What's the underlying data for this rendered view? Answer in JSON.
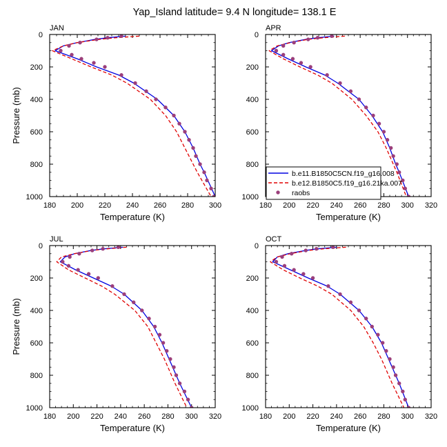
{
  "title": "Yap_Island  latitude= 9.4 N longitude= 138.1 E",
  "legend": {
    "entries": [
      "b.e11.B1850C5CN.f19_g16.008",
      "b.e12.B1850C5.f19_g16.21ka.007",
      "raobs"
    ]
  },
  "colors": {
    "model1": "#0000e0",
    "model2": "#e00000",
    "obs": "#9b3f7b"
  },
  "chart_data": [
    {
      "type": "line",
      "panel": "JAN",
      "xlabel": "Temperature (K)",
      "ylabel": "Pressure (mb)",
      "xlim": [
        180,
        300
      ],
      "xticks": [
        "180",
        "200",
        "220",
        "240",
        "260",
        "280",
        "300"
      ],
      "ylim": [
        0,
        1000
      ],
      "yreversed": true,
      "yticks": [
        "0",
        "200",
        "400",
        "600",
        "800",
        "1000"
      ],
      "series": [
        {
          "name": "b.e11.B1850C5CN.f19_g16.008",
          "style": "solid",
          "p": [
            10,
            20,
            30,
            50,
            70,
            100,
            150,
            200,
            250,
            300,
            400,
            500,
            600,
            700,
            800,
            850,
            925,
            1000
          ],
          "t": [
            235,
            222,
            213,
            200,
            190,
            184,
            200,
            214,
            230,
            241,
            258,
            270,
            278,
            284,
            289,
            292,
            296,
            300
          ]
        },
        {
          "name": "b.e12.B1850C5.f19_g16.21ka.007",
          "style": "dashed",
          "p": [
            10,
            20,
            30,
            50,
            70,
            100,
            150,
            200,
            250,
            300,
            400,
            500,
            600,
            700,
            800,
            850,
            925,
            1000
          ],
          "t": [
            245,
            228,
            216,
            200,
            190,
            182,
            196,
            210,
            225,
            236,
            253,
            264,
            272,
            278,
            284,
            287,
            292,
            297
          ]
        },
        {
          "name": "raobs",
          "style": "markers",
          "p": [
            10,
            20,
            30,
            50,
            70,
            100,
            125,
            150,
            175,
            200,
            250,
            300,
            350,
            400,
            450,
            500,
            550,
            600,
            650,
            700,
            750,
            800,
            850,
            900,
            950,
            1000
          ],
          "t": [
            232,
            222,
            214,
            202,
            194,
            188,
            196,
            203,
            212,
            220,
            232,
            242,
            250,
            257,
            264,
            270,
            274,
            278,
            281,
            284,
            286,
            289,
            292,
            294,
            297,
            299
          ]
        }
      ]
    },
    {
      "type": "line",
      "panel": "APR",
      "xlabel": "Temperature (K)",
      "ylabel": "",
      "xlim": [
        180,
        320
      ],
      "xticks": [
        "180",
        "200",
        "220",
        "240",
        "260",
        "280",
        "300",
        "320"
      ],
      "ylim": [
        0,
        1000
      ],
      "yreversed": true,
      "yticks": [
        "0",
        "200",
        "400",
        "600",
        "800",
        "1000"
      ],
      "series": [
        {
          "name": "b.e11.B1850C5CN.f19_g16.008",
          "style": "solid",
          "p": [
            10,
            20,
            30,
            50,
            70,
            100,
            150,
            200,
            250,
            300,
            400,
            500,
            600,
            700,
            800,
            850,
            925,
            1000
          ],
          "t": [
            238,
            224,
            214,
            200,
            191,
            185,
            199,
            214,
            230,
            241,
            259,
            270,
            279,
            285,
            290,
            293,
            297,
            301
          ]
        },
        {
          "name": "b.e12.B1850C5.f19_g16.21ka.007",
          "style": "dashed",
          "p": [
            10,
            20,
            30,
            50,
            70,
            100,
            150,
            200,
            250,
            300,
            400,
            500,
            600,
            700,
            800,
            850,
            925,
            1000
          ],
          "t": [
            247,
            229,
            216,
            201,
            190,
            183,
            195,
            209,
            224,
            236,
            253,
            265,
            275,
            282,
            288,
            291,
            295,
            299
          ]
        },
        {
          "name": "raobs",
          "style": "markers",
          "p": [
            10,
            20,
            30,
            50,
            70,
            100,
            125,
            150,
            175,
            200,
            250,
            300,
            350,
            400,
            450,
            500,
            550,
            600,
            650,
            700,
            750,
            800,
            850,
            900,
            950,
            1000
          ],
          "t": [
            236,
            224,
            216,
            204,
            195,
            189,
            195,
            203,
            210,
            218,
            232,
            243,
            252,
            259,
            265,
            271,
            276,
            280,
            283,
            286,
            288,
            291,
            293,
            296,
            298,
            301
          ]
        }
      ]
    },
    {
      "type": "line",
      "panel": "JUL",
      "xlabel": "Temperature (K)",
      "ylabel": "Pressure (mb)",
      "xlim": [
        180,
        320
      ],
      "xticks": [
        "180",
        "200",
        "220",
        "240",
        "260",
        "280",
        "300",
        "320"
      ],
      "ylim": [
        0,
        1000
      ],
      "yreversed": true,
      "yticks": [
        "0",
        "200",
        "400",
        "600",
        "800",
        "1000"
      ],
      "series": [
        {
          "name": "b.e11.B1850C5CN.f19_g16.008",
          "style": "solid",
          "p": [
            10,
            20,
            30,
            50,
            70,
            100,
            150,
            200,
            250,
            300,
            400,
            500,
            600,
            700,
            800,
            850,
            925,
            1000
          ],
          "t": [
            242,
            226,
            215,
            201,
            193,
            189,
            202,
            217,
            232,
            243,
            258,
            268,
            275,
            281,
            287,
            290,
            295,
            300
          ]
        },
        {
          "name": "b.e12.B1850C5.f19_g16.21ka.007",
          "style": "dashed",
          "p": [
            10,
            20,
            30,
            50,
            70,
            100,
            150,
            200,
            250,
            300,
            400,
            500,
            600,
            700,
            800,
            850,
            925,
            1000
          ],
          "t": [
            245,
            229,
            216,
            201,
            190,
            186,
            196,
            210,
            224,
            235,
            252,
            263,
            270,
            277,
            283,
            286,
            291,
            296
          ]
        },
        {
          "name": "raobs",
          "style": "markers",
          "p": [
            10,
            20,
            30,
            50,
            70,
            100,
            125,
            150,
            175,
            200,
            250,
            300,
            350,
            400,
            450,
            500,
            550,
            600,
            650,
            700,
            750,
            800,
            850,
            900,
            950,
            1000
          ],
          "t": [
            238,
            225,
            216,
            205,
            197,
            191,
            196,
            204,
            213,
            221,
            233,
            243,
            251,
            258,
            264,
            269,
            273,
            276,
            279,
            282,
            285,
            287,
            290,
            294,
            297,
            300
          ]
        }
      ]
    },
    {
      "type": "line",
      "panel": "OCT",
      "xlabel": "Temperature (K)",
      "ylabel": "",
      "xlim": [
        180,
        320
      ],
      "xticks": [
        "180",
        "200",
        "220",
        "240",
        "260",
        "280",
        "300",
        "320"
      ],
      "ylim": [
        0,
        1000
      ],
      "yreversed": true,
      "yticks": [
        "0",
        "200",
        "400",
        "600",
        "800",
        "1000"
      ],
      "series": [
        {
          "name": "b.e11.B1850C5CN.f19_g16.008",
          "style": "solid",
          "p": [
            10,
            20,
            30,
            50,
            70,
            100,
            150,
            200,
            250,
            300,
            400,
            500,
            600,
            700,
            800,
            850,
            925,
            1000
          ],
          "t": [
            240,
            224,
            214,
            199,
            190,
            186,
            201,
            216,
            232,
            243,
            259,
            270,
            278,
            284,
            290,
            293,
            297,
            301
          ]
        },
        {
          "name": "b.e12.B1850C5.f19_g16.21ka.007",
          "style": "dashed",
          "p": [
            10,
            20,
            30,
            50,
            70,
            100,
            150,
            200,
            250,
            300,
            400,
            500,
            600,
            700,
            800,
            850,
            925,
            1000
          ],
          "t": [
            248,
            229,
            216,
            201,
            190,
            184,
            195,
            209,
            224,
            236,
            252,
            263,
            271,
            278,
            284,
            287,
            292,
            297
          ]
        },
        {
          "name": "raobs",
          "style": "markers",
          "p": [
            10,
            20,
            30,
            50,
            70,
            100,
            125,
            150,
            175,
            200,
            250,
            300,
            350,
            400,
            450,
            500,
            550,
            600,
            650,
            700,
            750,
            800,
            850,
            900,
            950,
            1000
          ],
          "t": [
            237,
            223,
            214,
            202,
            194,
            189,
            196,
            204,
            212,
            220,
            233,
            243,
            252,
            259,
            265,
            270,
            275,
            279,
            282,
            285,
            288,
            290,
            293,
            296,
            298,
            301
          ]
        }
      ]
    }
  ]
}
